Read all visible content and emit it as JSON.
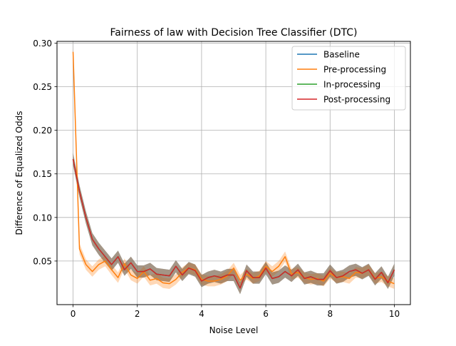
{
  "chart_data": {
    "type": "line",
    "title": "Fairness of law with Decision Tree Classifier (DTC)",
    "xlabel": "Noise Level",
    "ylabel": "Difference of Equalized Odds",
    "xlim": [
      -0.5,
      10.5
    ],
    "ylim": [
      0.0,
      0.302
    ],
    "xticks": [
      0,
      2,
      4,
      6,
      8,
      10
    ],
    "xtick_labels": [
      "0",
      "2",
      "4",
      "6",
      "8",
      "10"
    ],
    "yticks": [
      0.05,
      0.1,
      0.15,
      0.2,
      0.25,
      0.3
    ],
    "ytick_labels": [
      "0.05",
      "0.10",
      "0.15",
      "0.20",
      "0.25",
      "0.30"
    ],
    "grid": true,
    "legend_position": "top-right",
    "x": [
      0.0,
      0.2,
      0.4,
      0.6,
      0.8,
      1.0,
      1.2,
      1.4,
      1.6,
      1.8,
      2.0,
      2.2,
      2.4,
      2.6,
      2.8,
      3.0,
      3.2,
      3.4,
      3.6,
      3.8,
      4.0,
      4.2,
      4.4,
      4.6,
      4.8,
      5.0,
      5.2,
      5.4,
      5.6,
      5.8,
      6.0,
      6.2,
      6.4,
      6.6,
      6.8,
      7.0,
      7.2,
      7.4,
      7.6,
      7.8,
      8.0,
      8.2,
      8.4,
      8.6,
      8.8,
      9.0,
      9.2,
      9.4,
      9.6,
      9.8,
      10.0
    ],
    "series": [
      {
        "name": "Baseline",
        "color": "#1f77b4",
        "values": [
          0.167,
          0.13,
          0.1,
          0.075,
          0.064,
          0.055,
          0.046,
          0.055,
          0.04,
          0.048,
          0.038,
          0.038,
          0.041,
          0.035,
          0.034,
          0.033,
          0.044,
          0.034,
          0.042,
          0.039,
          0.027,
          0.031,
          0.033,
          0.031,
          0.034,
          0.034,
          0.019,
          0.039,
          0.031,
          0.031,
          0.042,
          0.03,
          0.032,
          0.038,
          0.033,
          0.04,
          0.03,
          0.032,
          0.029,
          0.029,
          0.039,
          0.031,
          0.033,
          0.038,
          0.04,
          0.036,
          0.04,
          0.029,
          0.037,
          0.025,
          0.04
        ],
        "band": 0.007
      },
      {
        "name": "Pre-processing",
        "color": "#ff7f0e",
        "values": [
          0.29,
          0.064,
          0.046,
          0.038,
          0.046,
          0.05,
          0.04,
          0.031,
          0.047,
          0.034,
          0.03,
          0.038,
          0.028,
          0.03,
          0.025,
          0.024,
          0.029,
          0.037,
          0.042,
          0.04,
          0.029,
          0.027,
          0.027,
          0.029,
          0.033,
          0.042,
          0.028,
          0.035,
          0.03,
          0.033,
          0.044,
          0.038,
          0.044,
          0.055,
          0.035,
          0.037,
          0.031,
          0.029,
          0.03,
          0.027,
          0.036,
          0.031,
          0.032,
          0.03,
          0.037,
          0.036,
          0.04,
          0.03,
          0.032,
          0.027,
          0.024
        ],
        "band": 0.006
      },
      {
        "name": "In-processing",
        "color": "#2ca02c",
        "values": [
          0.167,
          0.13,
          0.1,
          0.075,
          0.064,
          0.055,
          0.046,
          0.055,
          0.04,
          0.048,
          0.038,
          0.038,
          0.041,
          0.035,
          0.034,
          0.033,
          0.044,
          0.034,
          0.042,
          0.039,
          0.027,
          0.031,
          0.033,
          0.031,
          0.034,
          0.034,
          0.019,
          0.039,
          0.031,
          0.031,
          0.042,
          0.03,
          0.032,
          0.038,
          0.033,
          0.04,
          0.03,
          0.032,
          0.029,
          0.029,
          0.039,
          0.031,
          0.033,
          0.038,
          0.04,
          0.036,
          0.04,
          0.029,
          0.037,
          0.025,
          0.04
        ],
        "band": 0.007
      },
      {
        "name": "Post-processing",
        "color": "#d62728",
        "values": [
          0.167,
          0.13,
          0.1,
          0.075,
          0.064,
          0.055,
          0.046,
          0.055,
          0.04,
          0.048,
          0.038,
          0.038,
          0.041,
          0.035,
          0.034,
          0.033,
          0.044,
          0.034,
          0.042,
          0.039,
          0.027,
          0.031,
          0.033,
          0.031,
          0.034,
          0.034,
          0.019,
          0.039,
          0.031,
          0.031,
          0.042,
          0.03,
          0.032,
          0.038,
          0.033,
          0.04,
          0.03,
          0.032,
          0.029,
          0.029,
          0.039,
          0.031,
          0.033,
          0.038,
          0.04,
          0.036,
          0.04,
          0.029,
          0.037,
          0.025,
          0.04
        ],
        "band": 0.007
      }
    ]
  }
}
